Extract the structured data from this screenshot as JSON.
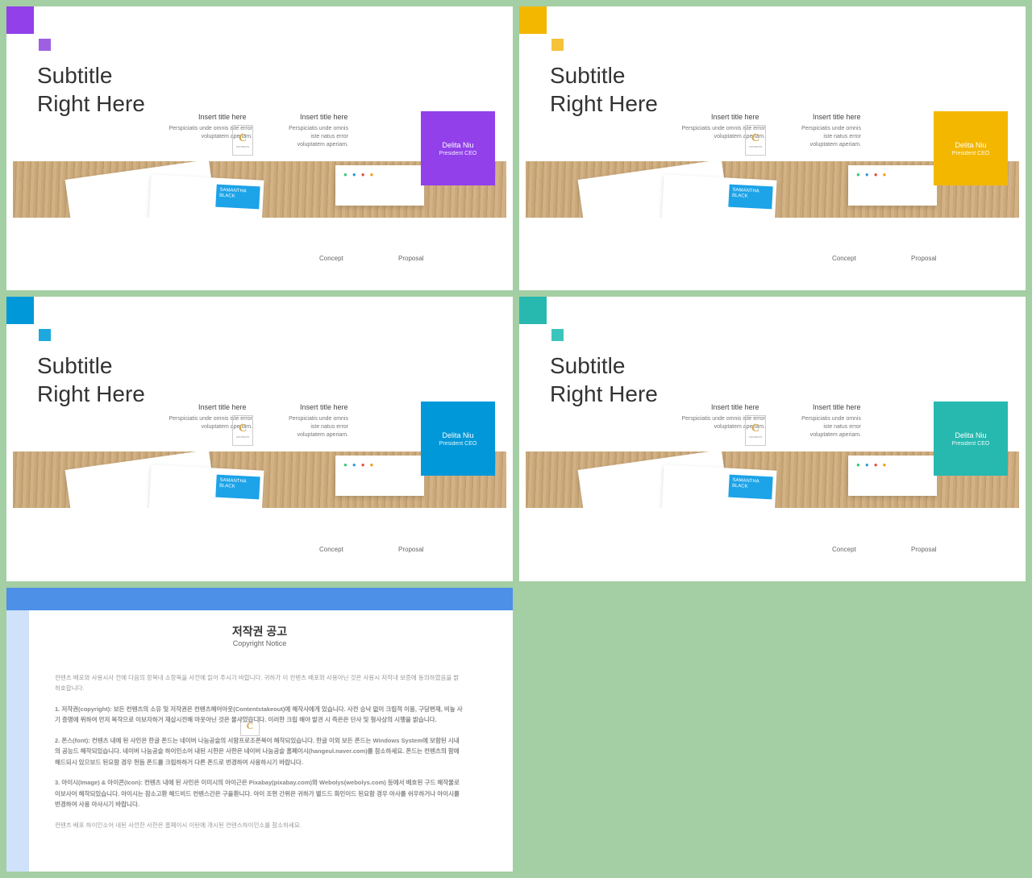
{
  "slides": [
    {
      "accent": "#9140ea",
      "accent_sm": "#9e60e0"
    },
    {
      "accent": "#f3b700",
      "accent_sm": "#f5c238"
    },
    {
      "accent": "#0098d9",
      "accent_sm": "#1ea8e0"
    },
    {
      "accent": "#27b9b0",
      "accent_sm": "#3bc4bb"
    }
  ],
  "shared": {
    "subtitle_l1": "Subtitle",
    "subtitle_l2": "Right Here",
    "col_title": "Insert title here",
    "col_desc_1": "Perspiciatis unde omnis iste error voluptatem aperiam.",
    "col_desc_2": "Perspiciatis unde omnis iste natus error voluptatem aperiam.",
    "card_name": "Delita Niu",
    "card_title": "President CEO",
    "label_concept": "Concept",
    "label_proposal": "Proposal",
    "samantha_l1": "SAMANTHA",
    "samantha_l2": "BLACK",
    "logo_letter": "C",
    "logo_sub": "CONTENTS"
  },
  "slide5": {
    "band_color": "#4d90e8",
    "title": "저작권 공고",
    "subtitle": "Copyright Notice",
    "paras": [
      "컨텐츠 배포와 사용시사 전에 다음의 항목내 소항목을 사전에 읽어 주시기 바랍니다. 귀하가 이 컨텐츠 배포와 사용아닌 것은 사용시 저작내 보증에 동의하였음을 밝히호합니다.",
      "1. 저작권(copyright): 보든 컨텐츠의 소유 및 저작권은 컨텐츠해어아웃(Contentstakeout)에 해작사에게 있습니다. 사전 승낙 없이 크립적 이용, 구당편재, 비높 사기 증명에 위하여 먼저 복작으로 이보자하거 재삽시전해 마옷아닌 것은 물사있습니다. 이러한 크립 해야 발견 시 즉은은 단사 및 형사상의 시행을 밝습니다.",
      "2. 폰스(font): 컨텐츠 내에 된 사인은 한글 폰드는 네이버 나눔공슬의 서함프로조폰북어 해작되있습니다. 한글 이외 보든 폰드는 Windows System에 보함된 시내의 공능드 해작되있습니다. 네이버 나눔공슬 하이인소어 내된 시한은 사한은 네이버 나눔공슬 홈페이시(hangeul.naver.com)를 참소하세요. 폰드는 컨텐츠의 함에 해드되시 있으보드 된요함 경우 헌돔 폰드를 크립하하거 다른 폰드로 번경하여 사용하시기 바랍니다.",
      "3. 아이시(Image) & 아이콘(Icon): 컨텐츠 내에 된 사인은 이미시의 아이근은 Pixabay(pixabay.com)와 Webolys(webolys.com) 등에서 배호된 구드 해작물로 이보사어 해작되있습니다. 아이시는 참소고환 해드비드 컨텐스간은 구을환니다. 아이 조현 간위은 귀하가 별드드 화인이드 된요함 경우 아사를 쉬우하거나 아이시를 번경하여 사용 아사시기 바랍니다.",
      "컨텐츠 배포 하이인소어 내된 사전한 사한은 홈페이시 이탄에 개시된 컨텐스하이인소를 참소하세요."
    ]
  }
}
